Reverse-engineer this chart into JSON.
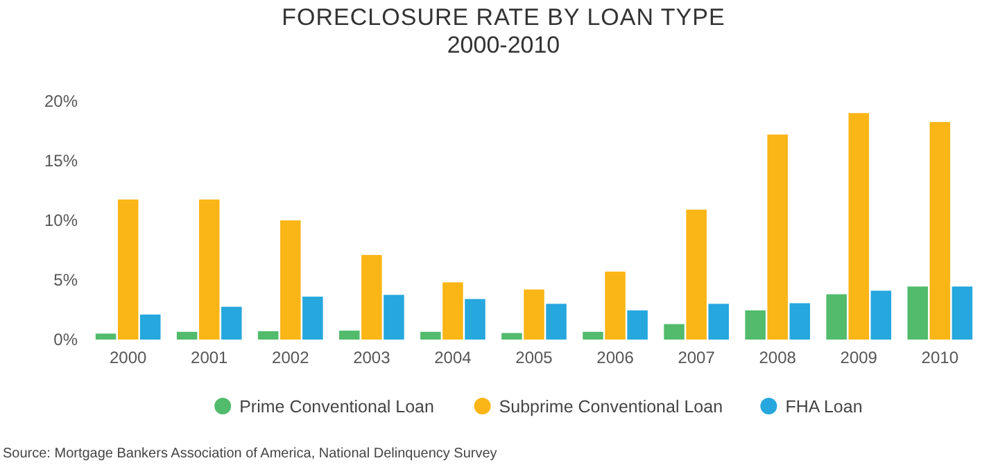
{
  "chart_data": {
    "type": "bar",
    "title": "FORECLOSURE RATE BY LOAN TYPE",
    "subtitle": "2000-2010",
    "categories": [
      "2000",
      "2001",
      "2002",
      "2003",
      "2004",
      "2005",
      "2006",
      "2007",
      "2008",
      "2009",
      "2010"
    ],
    "series": [
      {
        "name": "Prime Conventional Loan",
        "color": "#52bb6c",
        "values": [
          0.5,
          0.65,
          0.7,
          0.75,
          0.65,
          0.55,
          0.65,
          1.3,
          2.45,
          3.8,
          4.45
        ]
      },
      {
        "name": "Subprime Conventional Loan",
        "color": "#fab516",
        "values": [
          11.75,
          11.75,
          10,
          7.1,
          4.8,
          4.2,
          5.7,
          10.9,
          17.2,
          19,
          18.25
        ]
      },
      {
        "name": "FHA Loan",
        "color": "#26a7de",
        "values": [
          2.1,
          2.75,
          3.6,
          3.75,
          3.4,
          3,
          2.45,
          3,
          3.05,
          4.1,
          4.45
        ]
      }
    ],
    "ylim": [
      0,
      20
    ],
    "yticks": [
      {
        "value": 0,
        "label": "0%"
      },
      {
        "value": 5,
        "label": "5%"
      },
      {
        "value": 10,
        "label": "10%"
      },
      {
        "value": 15,
        "label": "15%"
      },
      {
        "value": 20,
        "label": "20%"
      }
    ],
    "grid": false,
    "legend": "bottom",
    "annotations": [
      "Source: Mortgage Bankers Association of America, National Delinquency Survey"
    ]
  }
}
